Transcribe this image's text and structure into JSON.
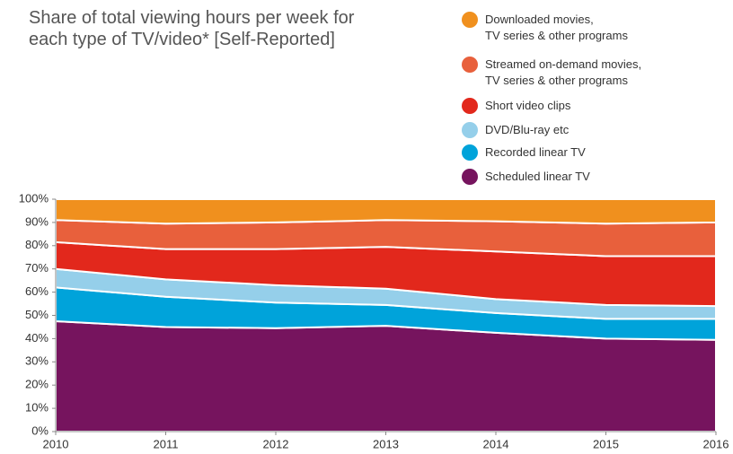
{
  "chart_data": {
    "type": "stacked_area",
    "title": "Share of total viewing hours per week for\neach type of TV/video* [Self-Reported]",
    "x": [
      2010,
      2011,
      2012,
      2013,
      2014,
      2015,
      2016
    ],
    "series": [
      {
        "name": "Scheduled linear TV",
        "color": "#76145e",
        "values": [
          47.5,
          45,
          44.5,
          45.5,
          42.5,
          40,
          39.5
        ]
      },
      {
        "name": "Recorded linear TV",
        "color": "#00a3da",
        "values": [
          14.5,
          13,
          11,
          9,
          8.5,
          8.5,
          9
        ]
      },
      {
        "name": "DVD/Blu-ray etc",
        "color": "#95cfea",
        "values": [
          8,
          7.5,
          7.5,
          7,
          6,
          6,
          5.5
        ]
      },
      {
        "name": "Short video clips",
        "color": "#e2281c",
        "values": [
          11.5,
          13,
          15.5,
          18,
          20.5,
          21,
          21.5
        ]
      },
      {
        "name": "Streamed on-demand movies,\nTV series & other programs",
        "color": "#e8603c",
        "values": [
          9.5,
          11,
          11.5,
          11.5,
          13,
          14,
          14.5
        ]
      },
      {
        "name": "Downloaded movies,\nTV series & other programs",
        "color": "#f0901e",
        "values": [
          9,
          10.5,
          10,
          9,
          9.5,
          10.5,
          10
        ]
      }
    ],
    "xlim": [
      2010,
      2016
    ],
    "xticks": [
      2010,
      2011,
      2012,
      2013,
      2014,
      2015,
      2016
    ],
    "ylim": [
      0,
      100
    ],
    "yticks": [
      {
        "value": 0,
        "label": "0%"
      },
      {
        "value": 10,
        "label": "10%"
      },
      {
        "value": 20,
        "label": "20%"
      },
      {
        "value": 30,
        "label": "30%"
      },
      {
        "value": 40,
        "label": "40%"
      },
      {
        "value": 50,
        "label": "50%"
      },
      {
        "value": 60,
        "label": "60%"
      },
      {
        "value": 70,
        "label": "70%"
      },
      {
        "value": 80,
        "label": "80%"
      },
      {
        "value": 90,
        "label": "90%"
      },
      {
        "value": 100,
        "label": "100%"
      }
    ],
    "legend": "top-right"
  }
}
